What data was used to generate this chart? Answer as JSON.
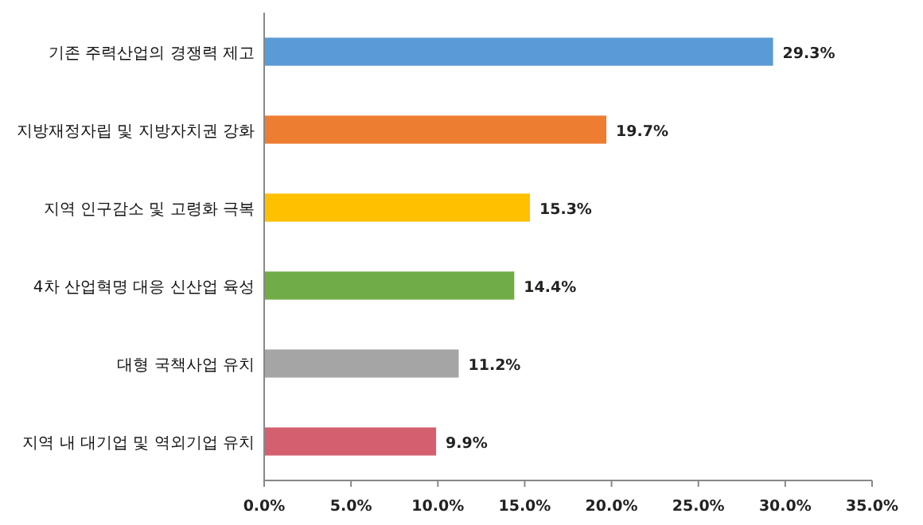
{
  "chart_data": {
    "type": "bar",
    "orientation": "horizontal",
    "categories": [
      "기존 주력산업의 경쟁력 제고",
      "지방재정자립 및 지방자치권 강화",
      "지역 인구감소 및 고령화 극복",
      "4차 산업혁명 대응 신산업 육성",
      "대형 국책사업 유치",
      "지역 내 대기업 및 역외기업 유치"
    ],
    "values": [
      29.3,
      19.7,
      15.3,
      14.4,
      11.2,
      9.9
    ],
    "colors": [
      "#5b9bd5",
      "#ed7d31",
      "#ffc000",
      "#70ad47",
      "#a5a5a5",
      "#d4606f"
    ],
    "value_labels": [
      "29.3%",
      "19.7%",
      "15.3%",
      "14.4%",
      "11.2%",
      "9.9%"
    ],
    "xlim": [
      0,
      35
    ],
    "xticks": [
      {
        "value": 0,
        "label": "0.0%"
      },
      {
        "value": 5,
        "label": "5.0%"
      },
      {
        "value": 10,
        "label": "10.0%"
      },
      {
        "value": 15,
        "label": "15.0%"
      },
      {
        "value": 20,
        "label": "20.0%"
      },
      {
        "value": 25,
        "label": "25.0%"
      },
      {
        "value": 30,
        "label": "30.0%"
      },
      {
        "value": 35,
        "label": "35.0%"
      }
    ]
  }
}
